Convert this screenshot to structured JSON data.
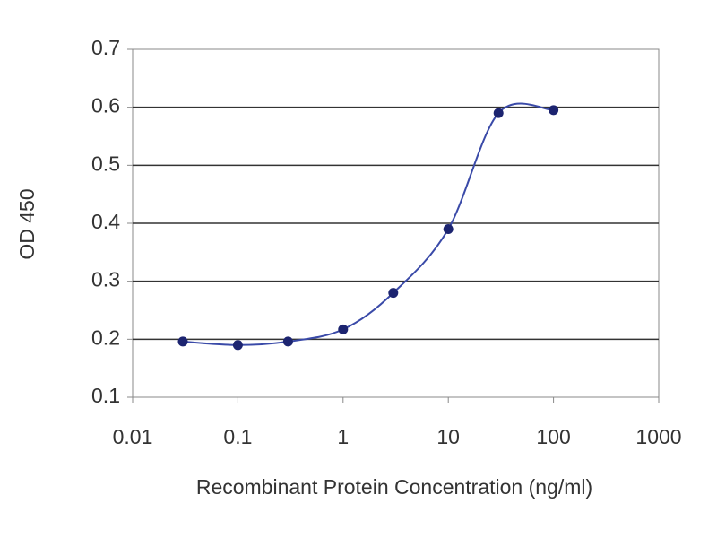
{
  "chart_data": {
    "type": "scatter",
    "x_label": "Recombinant Protein Concentration (ng/ml)",
    "y_label": "OD 450",
    "xscale": "log",
    "xlim": [
      0.01,
      1000
    ],
    "xticks": [
      0.01,
      0.1,
      1,
      10,
      100,
      1000
    ],
    "ylim": [
      0.1,
      0.7
    ],
    "yticks": [
      0.1,
      0.2,
      0.3,
      0.4,
      0.5,
      0.6,
      0.7
    ],
    "grid": true,
    "point_color": "#1c2470",
    "line_color": "#3a4aa8",
    "x": [
      0.03,
      0.1,
      0.3,
      1,
      3,
      10,
      30,
      100
    ],
    "values": [
      0.196,
      0.19,
      0.196,
      0.217,
      0.28,
      0.39,
      0.59,
      0.595
    ]
  }
}
